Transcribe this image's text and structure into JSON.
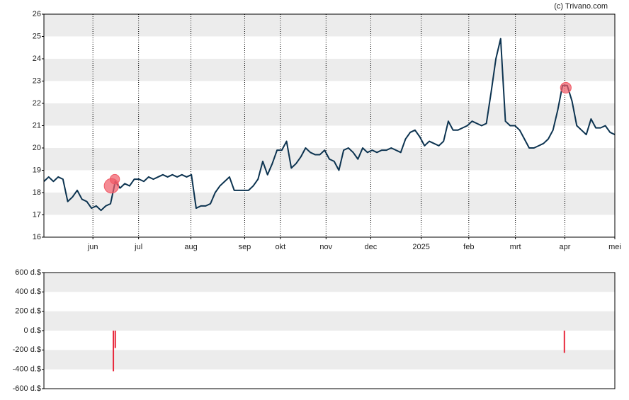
{
  "chart_data": [
    {
      "type": "line",
      "watermark": "(c) Trivano.com",
      "series": [
        {
          "color": "#0c3350",
          "values": [
            18.5,
            18.7,
            18.5,
            18.7,
            18.6,
            17.6,
            17.8,
            18.1,
            17.7,
            17.6,
            17.3,
            17.4,
            17.2,
            17.4,
            17.5,
            18.5,
            18.2,
            18.4,
            18.3,
            18.6,
            18.6,
            18.5,
            18.7,
            18.6,
            18.7,
            18.8,
            18.7,
            18.8,
            18.7,
            18.8,
            18.7,
            18.8,
            17.3,
            17.4,
            17.4,
            17.5,
            18.0,
            18.3,
            18.5,
            18.7,
            18.1,
            18.1,
            18.1,
            18.1,
            18.3,
            18.6,
            19.4,
            18.8,
            19.3,
            19.9,
            19.9,
            20.3,
            19.1,
            19.3,
            19.6,
            20.0,
            19.8,
            19.7,
            19.7,
            19.9,
            19.5,
            19.4,
            19.0,
            19.9,
            20.0,
            19.8,
            19.5,
            20.0,
            19.8,
            19.9,
            19.8,
            19.9,
            19.9,
            20.0,
            19.9,
            19.8,
            20.4,
            20.7,
            20.8,
            20.5,
            20.1,
            20.3,
            20.2,
            20.1,
            20.3,
            21.2,
            20.8,
            20.8,
            20.9,
            21.0,
            21.2,
            21.1,
            21.0,
            21.1,
            22.5,
            24.0,
            24.9,
            21.2,
            21.0,
            21.0,
            20.8,
            20.4,
            20.0,
            20.0,
            20.1,
            20.2,
            20.4,
            20.8,
            21.7,
            22.8,
            22.8,
            22.1,
            21.0,
            20.8,
            20.6,
            21.3,
            20.9,
            20.9,
            21.0,
            20.7,
            20.6
          ]
        }
      ],
      "markers": {
        "color": "#f05a66",
        "x": [
          14.2,
          14.9,
          109.7
        ],
        "values": [
          18.3,
          18.6,
          22.7
        ],
        "sizes": [
          420,
          180,
          230
        ]
      },
      "xlim": [
        0,
        120
      ],
      "xticks": [
        {
          "value": 10.3,
          "label": "jun"
        },
        {
          "value": 19.9,
          "label": "jul"
        },
        {
          "value": 30.9,
          "label": "aug"
        },
        {
          "value": 42.2,
          "label": "sep"
        },
        {
          "value": 49.7,
          "label": "okt"
        },
        {
          "value": 59.3,
          "label": "nov"
        },
        {
          "value": 68.7,
          "label": "dec"
        },
        {
          "value": 79.3,
          "label": "2025"
        },
        {
          "value": 89.3,
          "label": "feb"
        },
        {
          "value": 99.1,
          "label": "mrt"
        },
        {
          "value": 109.5,
          "label": "apr"
        },
        {
          "value": 120,
          "label": "mei"
        }
      ],
      "ylim": [
        16,
        26
      ],
      "yticks": [
        16,
        17,
        18,
        19,
        20,
        21,
        22,
        23,
        24,
        25,
        26
      ],
      "grid": true
    },
    {
      "type": "bar",
      "color": "#e8283c",
      "x": [
        14.6,
        15.0,
        109.4
      ],
      "values": [
        -420,
        -180,
        -230
      ],
      "xlim": [
        0,
        120
      ],
      "ylim": [
        -600,
        600
      ],
      "yticks": [
        {
          "value": 600,
          "label": "600 d.$"
        },
        {
          "value": 400,
          "label": "400 d.$"
        },
        {
          "value": 200,
          "label": "200 d.$"
        },
        {
          "value": 0,
          "label": "0 d.$"
        },
        {
          "value": -200,
          "label": "-200 d.$"
        },
        {
          "value": -400,
          "label": "-400 d.$"
        },
        {
          "value": -600,
          "label": "-600 d.$"
        }
      ]
    }
  ]
}
